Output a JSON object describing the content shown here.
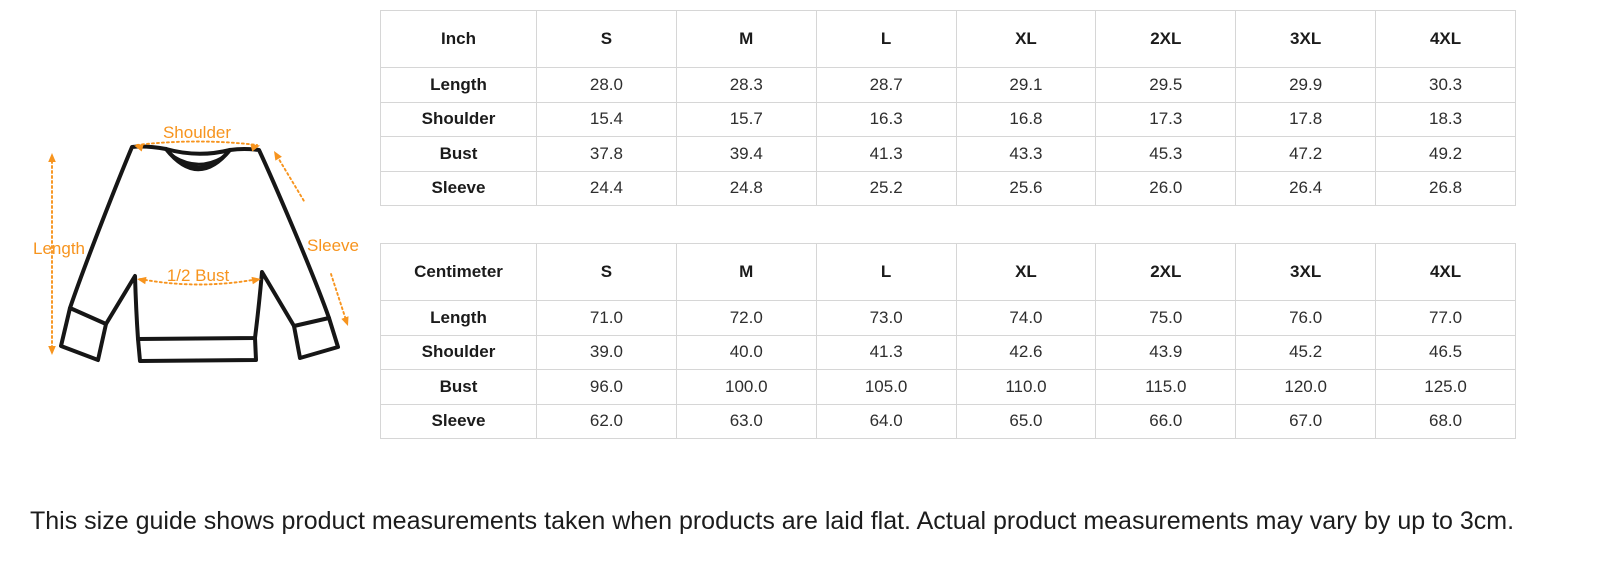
{
  "diagram": {
    "accent_color": "#F7941E",
    "outline_color": "#161616",
    "labels": {
      "shoulder": "Shoulder",
      "length": "Length",
      "sleeve": "Sleeve",
      "half_bust": "1/2 Bust"
    }
  },
  "tables": [
    {
      "unit_header": "Inch",
      "size_headers": [
        "S",
        "M",
        "L",
        "XL",
        "2XL",
        "3XL",
        "4XL"
      ],
      "rows": [
        {
          "label": "Length",
          "values": [
            "28.0",
            "28.3",
            "28.7",
            "29.1",
            "29.5",
            "29.9",
            "30.3"
          ]
        },
        {
          "label": "Shoulder",
          "values": [
            "15.4",
            "15.7",
            "16.3",
            "16.8",
            "17.3",
            "17.8",
            "18.3"
          ]
        },
        {
          "label": "Bust",
          "values": [
            "37.8",
            "39.4",
            "41.3",
            "43.3",
            "45.3",
            "47.2",
            "49.2"
          ]
        },
        {
          "label": "Sleeve",
          "values": [
            "24.4",
            "24.8",
            "25.2",
            "25.6",
            "26.0",
            "26.4",
            "26.8"
          ]
        }
      ]
    },
    {
      "unit_header": "Centimeter",
      "size_headers": [
        "S",
        "M",
        "L",
        "XL",
        "2XL",
        "3XL",
        "4XL"
      ],
      "rows": [
        {
          "label": "Length",
          "values": [
            "71.0",
            "72.0",
            "73.0",
            "74.0",
            "75.0",
            "76.0",
            "77.0"
          ]
        },
        {
          "label": "Shoulder",
          "values": [
            "39.0",
            "40.0",
            "41.3",
            "42.6",
            "43.9",
            "45.2",
            "46.5"
          ]
        },
        {
          "label": "Bust",
          "values": [
            "96.0",
            "100.0",
            "105.0",
            "110.0",
            "115.0",
            "120.0",
            "125.0"
          ]
        },
        {
          "label": "Sleeve",
          "values": [
            "62.0",
            "63.0",
            "64.0",
            "65.0",
            "66.0",
            "67.0",
            "68.0"
          ]
        }
      ]
    }
  ],
  "footer": {
    "note": "This size guide shows product measurements taken when products are laid flat. Actual product measurements may vary by up to 3cm."
  }
}
